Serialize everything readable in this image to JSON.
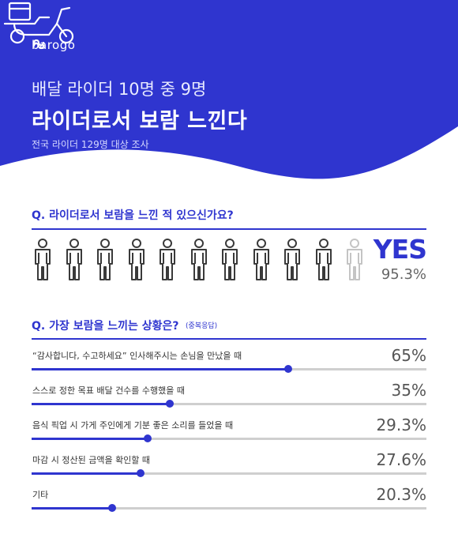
{
  "brand": {
    "name": "barogo"
  },
  "hero": {
    "headline": "배달 라이더 10명 중 9명",
    "headline_bold": "라이더로서 보람 느낀다",
    "subtitle": "전국 라이더 129명 대상 조사"
  },
  "colors": {
    "accent": "#2f35cf",
    "track": "#cfcfcf",
    "muted_figure": "#c4c4c4"
  },
  "icons": [
    "barogo-logo-icon",
    "scooter-icon",
    "person-icon"
  ],
  "chart_data": [
    {
      "type": "pictograph",
      "title": "Q. 라이더로서 보람을 느낀 적 있으신가요?",
      "label": "YES",
      "value_text": "95.3%",
      "value": 95.3,
      "figures_total": 11,
      "figures_highlighted": 10
    },
    {
      "type": "bar",
      "orientation": "horizontal",
      "title": "Q. 가장 보람을 느끼는 상황은?",
      "note": "(중복응답)",
      "xlim": [
        0,
        100
      ],
      "categories": [
        "“감사합니다, 수고하세요” 인사해주시는 손님을 만났을 때",
        "스스로 정한 목표 배달 건수를 수행했을 때",
        "음식 픽업 시 가게 주인에게 기분 좋은 소리를 들었을 때",
        "마감 시 정산된 금액을 확인할 때",
        "기타"
      ],
      "values": [
        65,
        35,
        29.3,
        27.6,
        20.3
      ],
      "value_labels": [
        "65%",
        "35%",
        "29.3%",
        "27.6%",
        "20.3%"
      ]
    }
  ]
}
